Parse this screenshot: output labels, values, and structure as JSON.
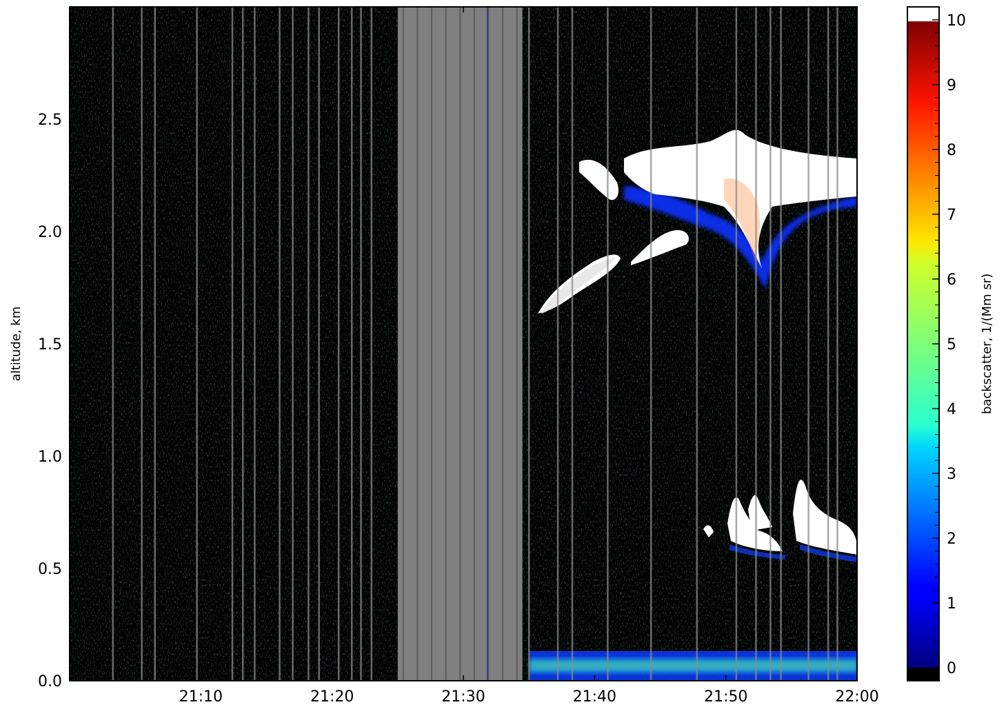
{
  "chart_data": {
    "type": "heatmap",
    "title": "",
    "xlabel": "",
    "ylabel": "altitude, km",
    "x_ticks": [
      "21:10",
      "21:20",
      "21:30",
      "21:40",
      "21:50",
      "22:00"
    ],
    "x_tick_minutes": [
      10,
      20,
      30,
      40,
      50,
      60
    ],
    "xlim_minutes": [
      0,
      60
    ],
    "y_ticks": [
      "0.0",
      "0.5",
      "1.0",
      "1.5",
      "2.0",
      "2.5"
    ],
    "y_tick_values": [
      0.0,
      0.5,
      1.0,
      1.5,
      2.0,
      2.5
    ],
    "ylim": [
      0.0,
      3.0
    ],
    "colorbar": {
      "label": "backscatter, 1/(Mm sr)",
      "ticks": [
        "0",
        "1",
        "2",
        "3",
        "4",
        "5",
        "6",
        "7",
        "8",
        "9",
        "10"
      ],
      "tick_values": [
        0,
        1,
        2,
        3,
        4,
        5,
        6,
        7,
        8,
        9,
        10
      ],
      "range": [
        -0.2,
        10.2
      ],
      "colormap": "jet",
      "over_color": "#ffffff",
      "under_color": "#000000"
    },
    "no_data_color": "#808080",
    "no_data_interval_minutes": [
      25,
      34.5
    ],
    "features": [
      {
        "kind": "cloud-layer",
        "time_minutes": [
          35.5,
          60
        ],
        "altitude_km": [
          1.6,
          2.4
        ],
        "backscatter": "above 10"
      },
      {
        "kind": "low-cloud",
        "time_minutes": [
          49,
          60
        ],
        "altitude_km": [
          0.55,
          0.95
        ],
        "backscatter": "above 10"
      },
      {
        "kind": "surface-layer",
        "time_minutes": [
          35,
          60
        ],
        "altitude_km": [
          0.0,
          0.12
        ],
        "backscatter": "1 to 4"
      }
    ]
  }
}
